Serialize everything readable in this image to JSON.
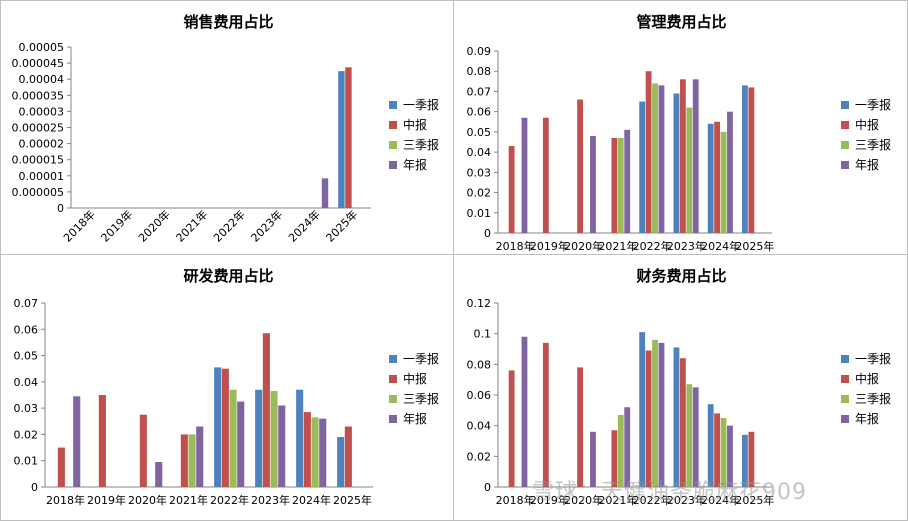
{
  "watermark": "雪球：天健油条脆麻花909",
  "colors": {
    "一季报": "#4f81bd",
    "中报": "#c0504d",
    "三季报": "#9bbb59",
    "年报": "#8064a2"
  },
  "chart_data": [
    {
      "type": "bar",
      "title": "销售费用占比",
      "categories": [
        "2018年",
        "2019年",
        "2020年",
        "2021年",
        "2022年",
        "2023年",
        "2024年",
        "2025年"
      ],
      "ylim": [
        0,
        5e-05
      ],
      "yticks": [
        "0",
        "0.000005",
        "0.00001",
        "0.000015",
        "0.00002",
        "0.000025",
        "0.00003",
        "0.000035",
        "0.00004",
        "0.000045",
        "0.00005"
      ],
      "rotate_x_labels": true,
      "legend": "right",
      "series": [
        {
          "name": "一季报",
          "values": [
            null,
            null,
            null,
            null,
            null,
            null,
            null,
            4.25e-05
          ]
        },
        {
          "name": "中报",
          "values": [
            null,
            null,
            null,
            null,
            null,
            null,
            null,
            4.37e-05
          ]
        },
        {
          "name": "三季报",
          "values": [
            null,
            null,
            null,
            null,
            null,
            null,
            null,
            null
          ]
        },
        {
          "name": "年报",
          "values": [
            null,
            null,
            null,
            null,
            null,
            null,
            9.2e-06,
            null
          ]
        }
      ]
    },
    {
      "type": "bar",
      "title": "管理费用占比",
      "categories": [
        "2018年",
        "2019年",
        "2020年",
        "2021年",
        "2022年",
        "2023年",
        "2024年",
        "2025年"
      ],
      "ylim": [
        0,
        0.09
      ],
      "yticks": [
        "0",
        "0.01",
        "0.02",
        "0.03",
        "0.04",
        "0.05",
        "0.06",
        "0.07",
        "0.08",
        "0.09"
      ],
      "rotate_x_labels": false,
      "legend": "right",
      "series": [
        {
          "name": "一季报",
          "values": [
            null,
            null,
            null,
            null,
            0.065,
            0.069,
            0.054,
            0.073
          ]
        },
        {
          "name": "中报",
          "values": [
            0.043,
            0.057,
            0.066,
            0.047,
            0.08,
            0.076,
            0.055,
            0.072
          ]
        },
        {
          "name": "三季报",
          "values": [
            null,
            null,
            null,
            0.047,
            0.074,
            0.062,
            0.05,
            null
          ]
        },
        {
          "name": "年报",
          "values": [
            0.057,
            null,
            0.048,
            0.051,
            0.073,
            0.076,
            0.06,
            null
          ]
        }
      ]
    },
    {
      "type": "bar",
      "title": "研发费用占比",
      "categories": [
        "2018年",
        "2019年",
        "2020年",
        "2021年",
        "2022年",
        "2023年",
        "2024年",
        "2025年"
      ],
      "ylim": [
        0,
        0.07
      ],
      "yticks": [
        "0",
        "0.01",
        "0.02",
        "0.03",
        "0.04",
        "0.05",
        "0.06",
        "0.07"
      ],
      "rotate_x_labels": false,
      "legend": "right",
      "series": [
        {
          "name": "一季报",
          "values": [
            null,
            null,
            null,
            null,
            0.0455,
            0.037,
            0.037,
            0.019
          ]
        },
        {
          "name": "中报",
          "values": [
            0.015,
            0.035,
            0.0275,
            0.02,
            0.045,
            0.0585,
            0.0285,
            0.023
          ]
        },
        {
          "name": "三季报",
          "values": [
            null,
            null,
            null,
            0.02,
            0.037,
            0.0365,
            0.0265,
            null
          ]
        },
        {
          "name": "年报",
          "values": [
            0.0345,
            null,
            0.0095,
            0.023,
            0.0325,
            0.031,
            0.026,
            null
          ]
        }
      ]
    },
    {
      "type": "bar",
      "title": "财务费用占比",
      "categories": [
        "2018年",
        "2019年",
        "2020年",
        "2021年",
        "2022年",
        "2023年",
        "2024年",
        "2025年"
      ],
      "ylim": [
        0,
        0.12
      ],
      "yticks": [
        "0",
        "0.02",
        "0.04",
        "0.06",
        "0.08",
        "0.1",
        "0.12"
      ],
      "rotate_x_labels": false,
      "legend": "right",
      "series": [
        {
          "name": "一季报",
          "values": [
            null,
            null,
            null,
            null,
            0.101,
            0.091,
            0.054,
            0.034
          ]
        },
        {
          "name": "中报",
          "values": [
            0.076,
            0.094,
            0.078,
            0.037,
            0.089,
            0.084,
            0.048,
            0.036
          ]
        },
        {
          "name": "三季报",
          "values": [
            null,
            null,
            null,
            0.047,
            0.096,
            0.067,
            0.045,
            null
          ]
        },
        {
          "name": "年报",
          "values": [
            0.098,
            null,
            0.036,
            0.052,
            0.094,
            0.065,
            0.04,
            null
          ]
        }
      ]
    }
  ]
}
